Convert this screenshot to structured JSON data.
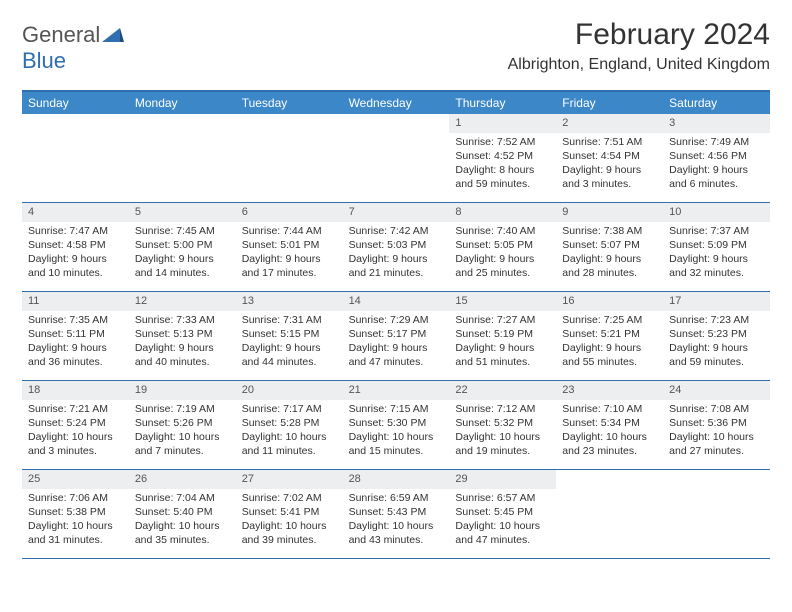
{
  "brand": {
    "part1": "General",
    "part2": "Blue"
  },
  "title": "February 2024",
  "location": "Albrighton, England, United Kingdom",
  "colors": {
    "header_bg": "#3b87c8",
    "border": "#2f6fb0",
    "daynum_bg": "#eceef0",
    "text": "#333333",
    "white": "#ffffff"
  },
  "weekdays": [
    "Sunday",
    "Monday",
    "Tuesday",
    "Wednesday",
    "Thursday",
    "Friday",
    "Saturday"
  ],
  "weeks": [
    [
      null,
      null,
      null,
      null,
      {
        "n": "1",
        "sr": "Sunrise: 7:52 AM",
        "ss": "Sunset: 4:52 PM",
        "dl1": "Daylight: 8 hours",
        "dl2": "and 59 minutes."
      },
      {
        "n": "2",
        "sr": "Sunrise: 7:51 AM",
        "ss": "Sunset: 4:54 PM",
        "dl1": "Daylight: 9 hours",
        "dl2": "and 3 minutes."
      },
      {
        "n": "3",
        "sr": "Sunrise: 7:49 AM",
        "ss": "Sunset: 4:56 PM",
        "dl1": "Daylight: 9 hours",
        "dl2": "and 6 minutes."
      }
    ],
    [
      {
        "n": "4",
        "sr": "Sunrise: 7:47 AM",
        "ss": "Sunset: 4:58 PM",
        "dl1": "Daylight: 9 hours",
        "dl2": "and 10 minutes."
      },
      {
        "n": "5",
        "sr": "Sunrise: 7:45 AM",
        "ss": "Sunset: 5:00 PM",
        "dl1": "Daylight: 9 hours",
        "dl2": "and 14 minutes."
      },
      {
        "n": "6",
        "sr": "Sunrise: 7:44 AM",
        "ss": "Sunset: 5:01 PM",
        "dl1": "Daylight: 9 hours",
        "dl2": "and 17 minutes."
      },
      {
        "n": "7",
        "sr": "Sunrise: 7:42 AM",
        "ss": "Sunset: 5:03 PM",
        "dl1": "Daylight: 9 hours",
        "dl2": "and 21 minutes."
      },
      {
        "n": "8",
        "sr": "Sunrise: 7:40 AM",
        "ss": "Sunset: 5:05 PM",
        "dl1": "Daylight: 9 hours",
        "dl2": "and 25 minutes."
      },
      {
        "n": "9",
        "sr": "Sunrise: 7:38 AM",
        "ss": "Sunset: 5:07 PM",
        "dl1": "Daylight: 9 hours",
        "dl2": "and 28 minutes."
      },
      {
        "n": "10",
        "sr": "Sunrise: 7:37 AM",
        "ss": "Sunset: 5:09 PM",
        "dl1": "Daylight: 9 hours",
        "dl2": "and 32 minutes."
      }
    ],
    [
      {
        "n": "11",
        "sr": "Sunrise: 7:35 AM",
        "ss": "Sunset: 5:11 PM",
        "dl1": "Daylight: 9 hours",
        "dl2": "and 36 minutes."
      },
      {
        "n": "12",
        "sr": "Sunrise: 7:33 AM",
        "ss": "Sunset: 5:13 PM",
        "dl1": "Daylight: 9 hours",
        "dl2": "and 40 minutes."
      },
      {
        "n": "13",
        "sr": "Sunrise: 7:31 AM",
        "ss": "Sunset: 5:15 PM",
        "dl1": "Daylight: 9 hours",
        "dl2": "and 44 minutes."
      },
      {
        "n": "14",
        "sr": "Sunrise: 7:29 AM",
        "ss": "Sunset: 5:17 PM",
        "dl1": "Daylight: 9 hours",
        "dl2": "and 47 minutes."
      },
      {
        "n": "15",
        "sr": "Sunrise: 7:27 AM",
        "ss": "Sunset: 5:19 PM",
        "dl1": "Daylight: 9 hours",
        "dl2": "and 51 minutes."
      },
      {
        "n": "16",
        "sr": "Sunrise: 7:25 AM",
        "ss": "Sunset: 5:21 PM",
        "dl1": "Daylight: 9 hours",
        "dl2": "and 55 minutes."
      },
      {
        "n": "17",
        "sr": "Sunrise: 7:23 AM",
        "ss": "Sunset: 5:23 PM",
        "dl1": "Daylight: 9 hours",
        "dl2": "and 59 minutes."
      }
    ],
    [
      {
        "n": "18",
        "sr": "Sunrise: 7:21 AM",
        "ss": "Sunset: 5:24 PM",
        "dl1": "Daylight: 10 hours",
        "dl2": "and 3 minutes."
      },
      {
        "n": "19",
        "sr": "Sunrise: 7:19 AM",
        "ss": "Sunset: 5:26 PM",
        "dl1": "Daylight: 10 hours",
        "dl2": "and 7 minutes."
      },
      {
        "n": "20",
        "sr": "Sunrise: 7:17 AM",
        "ss": "Sunset: 5:28 PM",
        "dl1": "Daylight: 10 hours",
        "dl2": "and 11 minutes."
      },
      {
        "n": "21",
        "sr": "Sunrise: 7:15 AM",
        "ss": "Sunset: 5:30 PM",
        "dl1": "Daylight: 10 hours",
        "dl2": "and 15 minutes."
      },
      {
        "n": "22",
        "sr": "Sunrise: 7:12 AM",
        "ss": "Sunset: 5:32 PM",
        "dl1": "Daylight: 10 hours",
        "dl2": "and 19 minutes."
      },
      {
        "n": "23",
        "sr": "Sunrise: 7:10 AM",
        "ss": "Sunset: 5:34 PM",
        "dl1": "Daylight: 10 hours",
        "dl2": "and 23 minutes."
      },
      {
        "n": "24",
        "sr": "Sunrise: 7:08 AM",
        "ss": "Sunset: 5:36 PM",
        "dl1": "Daylight: 10 hours",
        "dl2": "and 27 minutes."
      }
    ],
    [
      {
        "n": "25",
        "sr": "Sunrise: 7:06 AM",
        "ss": "Sunset: 5:38 PM",
        "dl1": "Daylight: 10 hours",
        "dl2": "and 31 minutes."
      },
      {
        "n": "26",
        "sr": "Sunrise: 7:04 AM",
        "ss": "Sunset: 5:40 PM",
        "dl1": "Daylight: 10 hours",
        "dl2": "and 35 minutes."
      },
      {
        "n": "27",
        "sr": "Sunrise: 7:02 AM",
        "ss": "Sunset: 5:41 PM",
        "dl1": "Daylight: 10 hours",
        "dl2": "and 39 minutes."
      },
      {
        "n": "28",
        "sr": "Sunrise: 6:59 AM",
        "ss": "Sunset: 5:43 PM",
        "dl1": "Daylight: 10 hours",
        "dl2": "and 43 minutes."
      },
      {
        "n": "29",
        "sr": "Sunrise: 6:57 AM",
        "ss": "Sunset: 5:45 PM",
        "dl1": "Daylight: 10 hours",
        "dl2": "and 47 minutes."
      },
      null,
      null
    ]
  ]
}
